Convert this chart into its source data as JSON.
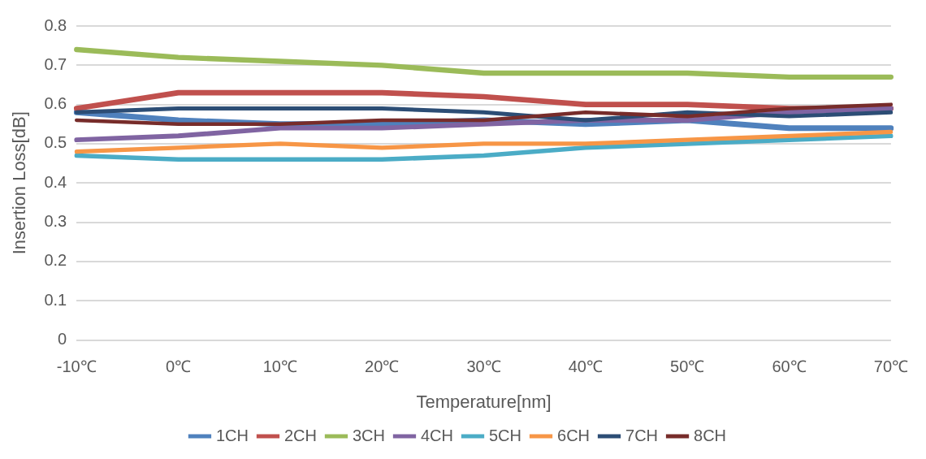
{
  "chart_data": {
    "type": "line",
    "xlabel": "Temperature[nm]",
    "ylabel": "Insertion Loss[dB]",
    "categories": [
      "-10℃",
      "0℃",
      "10℃",
      "20℃",
      "30℃",
      "40℃",
      "50℃",
      "60℃",
      "70℃"
    ],
    "series": [
      {
        "name": "1CH",
        "color": "#4f81bd",
        "values": [
          0.58,
          0.56,
          0.55,
          0.55,
          0.56,
          0.55,
          0.56,
          0.54,
          0.54
        ]
      },
      {
        "name": "2CH",
        "color": "#c0504d",
        "values": [
          0.59,
          0.63,
          0.63,
          0.63,
          0.62,
          0.6,
          0.6,
          0.59,
          0.59
        ]
      },
      {
        "name": "3CH",
        "color": "#9bbb59",
        "values": [
          0.74,
          0.72,
          0.71,
          0.7,
          0.68,
          0.68,
          0.68,
          0.67,
          0.67
        ]
      },
      {
        "name": "4CH",
        "color": "#8064a2",
        "values": [
          0.51,
          0.52,
          0.54,
          0.54,
          0.55,
          0.56,
          0.56,
          0.58,
          0.59
        ]
      },
      {
        "name": "5CH",
        "color": "#4bacc6",
        "values": [
          0.47,
          0.46,
          0.46,
          0.46,
          0.47,
          0.49,
          0.5,
          0.51,
          0.52
        ]
      },
      {
        "name": "6CH",
        "color": "#f79646",
        "values": [
          0.48,
          0.49,
          0.5,
          0.49,
          0.5,
          0.5,
          0.51,
          0.52,
          0.53
        ]
      },
      {
        "name": "7CH",
        "color": "#2c4d75",
        "values": [
          0.58,
          0.59,
          0.59,
          0.59,
          0.58,
          0.56,
          0.58,
          0.57,
          0.58
        ]
      },
      {
        "name": "8CH",
        "color": "#772c2a",
        "values": [
          0.56,
          0.55,
          0.55,
          0.56,
          0.56,
          0.58,
          0.57,
          0.59,
          0.6
        ]
      }
    ],
    "ylim": [
      0,
      0.8
    ],
    "yticks": [
      0,
      0.1,
      0.2,
      0.3,
      0.4,
      0.5,
      0.6,
      0.7,
      0.8
    ],
    "grid": "y",
    "legend": "bottom",
    "marker": "none",
    "line_style": "solid"
  }
}
